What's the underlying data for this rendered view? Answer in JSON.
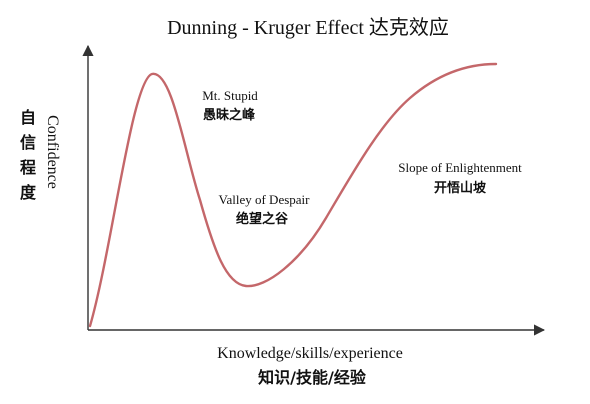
{
  "title": "Dunning - Kruger Effect 达克效应",
  "y_axis": {
    "label_en": "Confidence",
    "label_zh": [
      "自",
      "信",
      "程",
      "度"
    ]
  },
  "x_axis": {
    "label_en": "Knowledge/skills/experience",
    "label_zh": "知识/技能/经验"
  },
  "annotations": {
    "peak": {
      "en": "Mt. Stupid",
      "zh": "愚昧之峰"
    },
    "valley": {
      "en": "Valley of Despair",
      "zh": "绝望之谷"
    },
    "slope": {
      "en": "Slope of Enlightenment",
      "zh": "开悟山坡"
    }
  },
  "colors": {
    "curve": "#c4676a",
    "axis": "#333333",
    "text": "#111111"
  }
}
